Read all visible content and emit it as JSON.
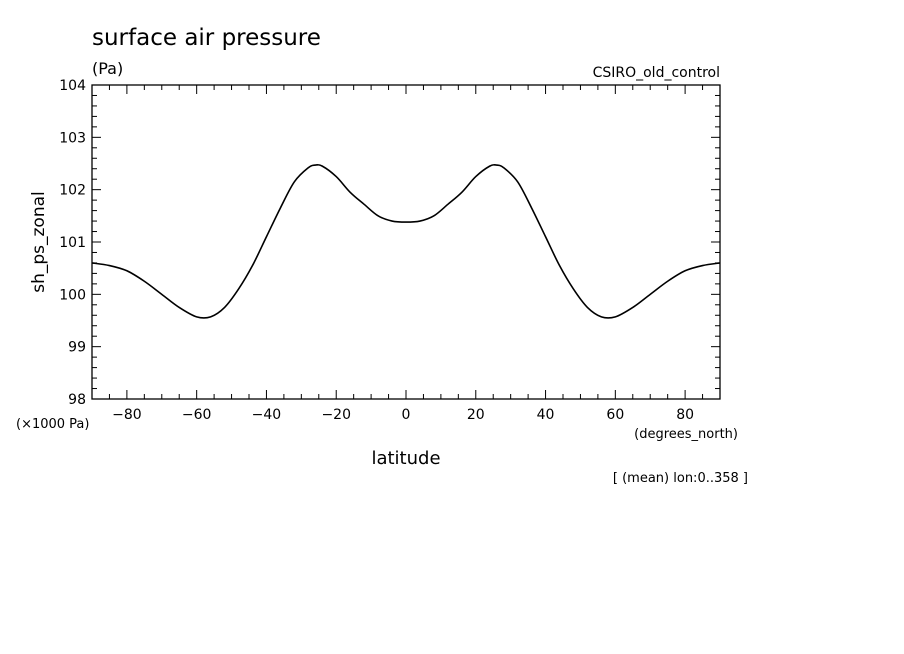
{
  "chart_data": {
    "type": "line",
    "title": "surface air pressure",
    "units": "(Pa)",
    "source": "CSIRO_old_control",
    "ylabel": "sh_ps_zonal",
    "yscale_note": "(×1000 Pa)",
    "xlabel": "latitude",
    "xunits": "(degrees_north)",
    "footnote": "[ (mean) lon:0..358 ]",
    "xlim": [
      -90,
      90
    ],
    "ylim": [
      98,
      104
    ],
    "xticks": [
      -80,
      -60,
      -40,
      -20,
      0,
      20,
      40,
      60,
      80
    ],
    "xtick_labels": [
      "−80",
      "−60",
      "−40",
      "−20",
      "0",
      "20",
      "40",
      "60",
      "80"
    ],
    "yticks": [
      98,
      99,
      100,
      101,
      102,
      103,
      104
    ],
    "ytick_labels": [
      "98",
      "99",
      "100",
      "101",
      "102",
      "103",
      "104"
    ],
    "grid": false,
    "series": [
      {
        "color": "#000000",
        "x": [
          -90,
          -85,
          -80,
          -75,
          -70,
          -65,
          -60,
          -56,
          -52,
          -48,
          -44,
          -40,
          -36,
          -32,
          -28,
          -26,
          -24,
          -20,
          -16,
          -12,
          -8,
          -4,
          0,
          4,
          8,
          12,
          16,
          20,
          24,
          26,
          28,
          32,
          36,
          40,
          44,
          48,
          52,
          56,
          60,
          65,
          70,
          75,
          80,
          85,
          90
        ],
        "y": [
          100.6,
          100.55,
          100.45,
          100.25,
          100.0,
          99.75,
          99.57,
          99.57,
          99.75,
          100.1,
          100.55,
          101.1,
          101.65,
          102.15,
          102.42,
          102.47,
          102.45,
          102.25,
          101.95,
          101.72,
          101.5,
          101.4,
          101.38,
          101.4,
          101.5,
          101.72,
          101.95,
          102.25,
          102.45,
          102.47,
          102.42,
          102.15,
          101.65,
          101.1,
          100.55,
          100.1,
          99.75,
          99.57,
          99.57,
          99.75,
          100.0,
          100.25,
          100.45,
          100.55,
          100.6
        ]
      }
    ]
  }
}
